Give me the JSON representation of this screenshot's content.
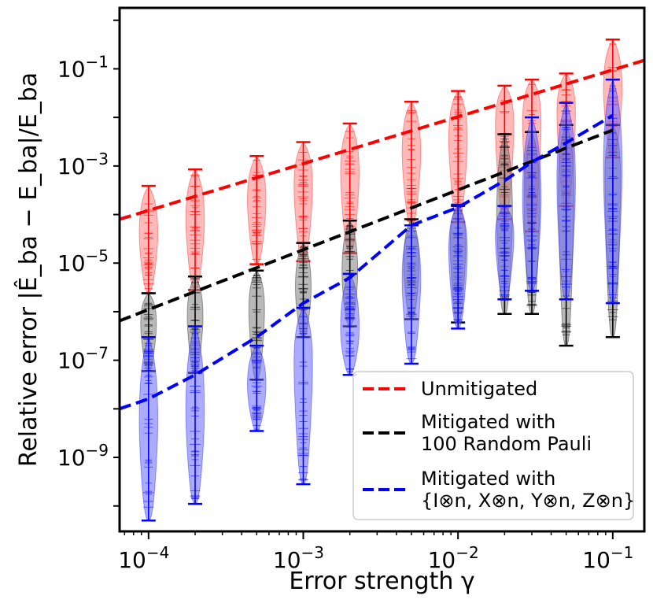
{
  "chart_data": {
    "type": "scatter",
    "xscale": "log",
    "yscale": "log",
    "xlim": [
      6.5e-05,
      0.16
    ],
    "ylim": [
      3e-11,
      1.8
    ],
    "xlabel": "Error strength γ",
    "ylabel": "Relative error |Ê_ba − E_ba|/E_ba",
    "x_ticks": [
      {
        "value": 0.0001,
        "base": "10",
        "exp": "−4"
      },
      {
        "value": 0.001,
        "base": "10",
        "exp": "−3"
      },
      {
        "value": 0.01,
        "base": "10",
        "exp": "−2"
      },
      {
        "value": 0.1,
        "base": "10",
        "exp": "−1"
      }
    ],
    "y_ticks": [
      {
        "value": 1e-09,
        "base": "10",
        "exp": "−9"
      },
      {
        "value": 1e-07,
        "base": "10",
        "exp": "−7"
      },
      {
        "value": 1e-05,
        "base": "10",
        "exp": "−5"
      },
      {
        "value": 0.001,
        "base": "10",
        "exp": "−3"
      },
      {
        "value": 0.1,
        "base": "10",
        "exp": "−1"
      }
    ],
    "gammas": [
      0.0001,
      0.0002,
      0.0005,
      0.001,
      0.002,
      0.005,
      0.01,
      0.02,
      0.03,
      0.05,
      0.1
    ],
    "series": [
      {
        "name": "Unmitigated",
        "color": "#ff0000",
        "fill": "#ff8080",
        "trend_x": [
          6.5e-05,
          0.16
        ],
        "trend_y": [
          8e-05,
          0.15
        ],
        "violin_min": [
          2.4e-06,
          2.8e-06,
          9.5e-06,
          1.1e-05,
          1.6e-05,
          6e-05,
          7e-05,
          8e-05,
          4.5e-05,
          0.00015,
          0.0015
        ],
        "violin_max": [
          0.00039,
          0.00085,
          0.0016,
          0.0031,
          0.0075,
          0.021,
          0.035,
          0.045,
          0.06,
          0.08,
          0.4
        ],
        "violin_median": [
          4e-05,
          8e-05,
          0.0002,
          0.0004,
          0.0008,
          0.002,
          0.004,
          0.008,
          0.01,
          0.015,
          0.04
        ]
      },
      {
        "name": "Mitigated with 100 Random Pauli",
        "label_lines": [
          "Mitigated with",
          "100 Random Pauli"
        ],
        "color": "#000000",
        "fill": "#808080",
        "trend_x": [
          6.5e-05,
          0.1
        ],
        "trend_y": [
          6.5e-07,
          0.0055
        ],
        "violin_min": [
          6e-08,
          5.5e-08,
          4e-08,
          3e-07,
          5e-07,
          7e-07,
          6e-07,
          9e-07,
          9e-07,
          2e-07,
          3e-07
        ],
        "violin_max": [
          2.4e-06,
          5.3e-06,
          7e-06,
          2.6e-05,
          7.5e-05,
          8e-05,
          0.00015,
          0.0045,
          0.005,
          0.007,
          0.007
        ],
        "violin_median": [
          6e-07,
          8e-07,
          1.2e-06,
          3e-06,
          6e-06,
          1e-05,
          3e-05,
          0.0001,
          0.0002,
          0.0004,
          0.0008
        ]
      },
      {
        "name": "Mitigated with {I⊗n, X⊗n, Y⊗n, Z⊗n}",
        "label_lines": [
          "Mitigated with",
          "{I⊗n, X⊗n, Y⊗n, Z⊗n}"
        ],
        "color": "#0000ff",
        "fill": "#6666ff",
        "trend_x": [
          6.5e-05,
          0.0001,
          0.0002,
          0.0005,
          0.001,
          0.002,
          0.005,
          0.01,
          0.02,
          0.03,
          0.05,
          0.1
        ],
        "trend_y": [
          1e-08,
          1.6e-08,
          5e-08,
          3e-07,
          1.5e-06,
          5e-06,
          6e-05,
          0.00014,
          0.0005,
          0.0012,
          0.003,
          0.011
        ],
        "violin_min": [
          5e-11,
          1.1e-10,
          3.5e-09,
          2.8e-10,
          5e-08,
          8.5e-08,
          4.5e-07,
          1.8e-06,
          2.7e-06,
          1.8e-06,
          1.5e-06
        ],
        "violin_max": [
          3e-07,
          5e-07,
          2e-07,
          1.2e-06,
          6e-06,
          6e-05,
          0.00016,
          0.00015,
          0.01,
          0.02,
          0.06
        ],
        "violin_median": [
          5e-09,
          8e-09,
          3e-08,
          1e-07,
          4e-07,
          5e-06,
          2e-05,
          4e-05,
          0.0002,
          0.0005,
          0.001
        ]
      }
    ],
    "legend_position": "lower-right"
  }
}
